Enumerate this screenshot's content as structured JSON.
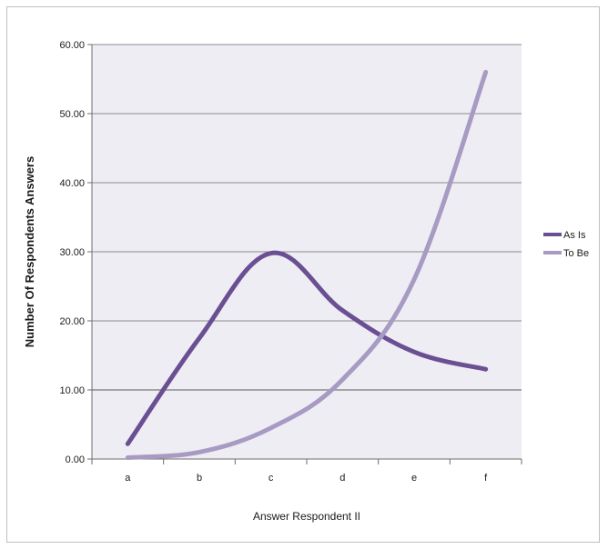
{
  "chart_data": {
    "type": "line",
    "title": "",
    "xlabel": "Answer Respondent II",
    "ylabel": "Number Of Respondents Answers",
    "categories": [
      "a",
      "b",
      "c",
      "d",
      "e",
      "f"
    ],
    "ylim": [
      0,
      60
    ],
    "yticks": [
      "0.00",
      "10.00",
      "20.00",
      "30.00",
      "40.00",
      "50.00",
      "60.00"
    ],
    "grid": true,
    "legend": "right",
    "series": [
      {
        "name": "As Is",
        "values": [
          2.2,
          17.5,
          29.8,
          21.5,
          15.5,
          13.0
        ],
        "color": "#6a4f92"
      },
      {
        "name": "To Be",
        "values": [
          0.2,
          1.0,
          4.5,
          11.5,
          26.0,
          56.0
        ],
        "color": "#a89bc3"
      }
    ],
    "plot_background": "#efedf4",
    "gridline_color": "#8c8c8c"
  }
}
